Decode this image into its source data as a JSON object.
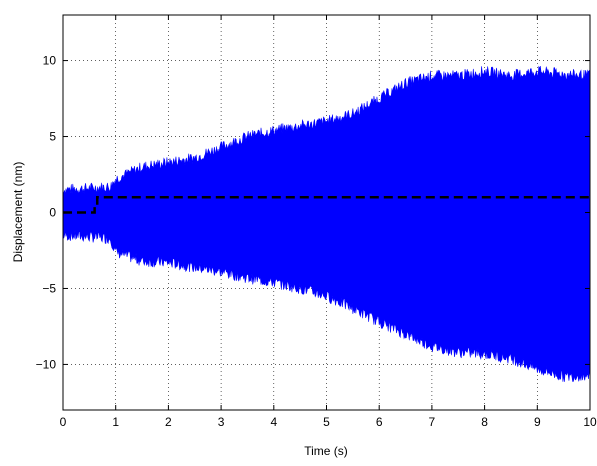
{
  "chart_data": {
    "type": "area",
    "xlabel": "Time (s)",
    "ylabel": "Displacement (nm)",
    "xlim": [
      0,
      10
    ],
    "ylim": [
      -13,
      13
    ],
    "xticks": [
      0,
      1,
      2,
      3,
      4,
      5,
      6,
      7,
      8,
      9,
      10
    ],
    "xtick_labels": [
      "0",
      "1",
      "2",
      "3",
      "4",
      "5",
      "6",
      "7",
      "8",
      "9",
      "10"
    ],
    "yticks": [
      10,
      5,
      0,
      -5,
      -10
    ],
    "ytick_labels": [
      "10",
      "5",
      "0",
      "−5",
      "−10"
    ],
    "grid": true,
    "series": [
      {
        "color": "#0000ff",
        "style": "dense-oscillation-envelope",
        "x": [
          0,
          0.5,
          0.9,
          1.0,
          1.5,
          2.0,
          2.5,
          3.0,
          3.5,
          4.0,
          4.5,
          5.0,
          5.5,
          6.0,
          6.5,
          7.0,
          7.5,
          8.0,
          8.5,
          9.0,
          9.5,
          10.0
        ],
        "upper": [
          1.5,
          1.6,
          1.7,
          2.2,
          3.0,
          3.3,
          3.6,
          4.3,
          5.0,
          5.4,
          5.7,
          6.0,
          6.5,
          7.5,
          8.5,
          9.0,
          9.0,
          9.3,
          9.0,
          9.3,
          9.1,
          9.0
        ],
        "lower": [
          -1.5,
          -1.6,
          -1.7,
          -2.6,
          -3.2,
          -3.3,
          -3.6,
          -3.9,
          -4.3,
          -4.6,
          -5.0,
          -5.5,
          -6.3,
          -7.2,
          -8.0,
          -8.8,
          -9.2,
          -9.3,
          -9.6,
          -10.3,
          -10.8,
          -10.7
        ]
      },
      {
        "color": "#000000",
        "style": "dashed",
        "x": [
          0,
          0.6,
          0.6,
          0.65,
          0.65,
          10
        ],
        "y": [
          0,
          0,
          0.5,
          0.5,
          1,
          1
        ]
      }
    ]
  }
}
